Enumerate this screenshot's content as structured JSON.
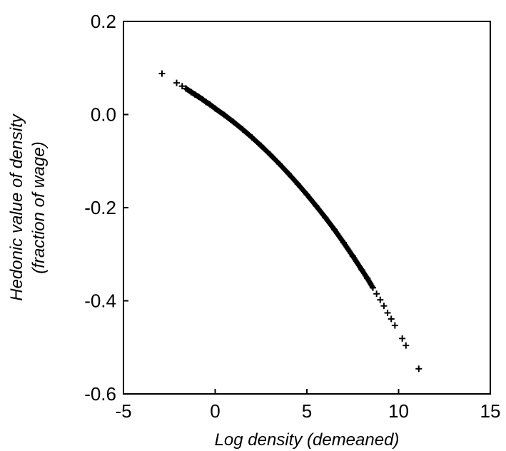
{
  "chart_data": {
    "type": "scatter",
    "title": "",
    "xlabel": "Log density (demeaned)",
    "ylabel_lines": [
      "Hedonic value of density",
      "(fraction of wage)"
    ],
    "xlim": [
      -5,
      15
    ],
    "ylim": [
      -0.6,
      0.2
    ],
    "x_ticks": [
      -5,
      0,
      5,
      10,
      15
    ],
    "x_tick_labels": [
      "-5",
      "0",
      "5",
      "10",
      "15"
    ],
    "y_ticks": [
      0.2,
      0.0,
      -0.2,
      -0.4,
      -0.6
    ],
    "y_tick_labels": [
      "0.2",
      "0.0",
      "-0.2",
      "-0.4",
      "-0.6"
    ],
    "grid": false,
    "legend": "none",
    "marker": "plus",
    "colors": {
      "marks": "#000000",
      "frame": "#000000",
      "background": "#ffffff"
    },
    "series": [
      {
        "x": [
          -2.9,
          -2.1,
          -1.8,
          -1.6,
          -1.3,
          -1.1,
          -0.9,
          -0.7,
          -0.5,
          -0.3,
          0.0,
          0.5,
          1.0,
          1.5,
          2.0,
          2.5,
          3.0,
          3.5,
          4.0,
          4.5,
          5.0,
          5.5,
          6.0,
          6.5,
          7.0,
          7.5,
          8.0,
          8.3,
          8.6,
          8.8,
          9.0,
          9.2,
          9.4,
          9.6,
          9.8,
          10.2,
          10.4,
          11.1
        ],
        "y": [
          0.088,
          0.068,
          0.061,
          0.056,
          0.048,
          0.043,
          0.038,
          0.033,
          0.027,
          0.022,
          0.013,
          -0.001,
          -0.016,
          -0.032,
          -0.049,
          -0.067,
          -0.086,
          -0.106,
          -0.127,
          -0.149,
          -0.172,
          -0.196,
          -0.221,
          -0.247,
          -0.275,
          -0.304,
          -0.334,
          -0.352,
          -0.372,
          -0.385,
          -0.398,
          -0.411,
          -0.426,
          -0.439,
          -0.453,
          -0.481,
          -0.496,
          -0.546
        ]
      }
    ]
  }
}
